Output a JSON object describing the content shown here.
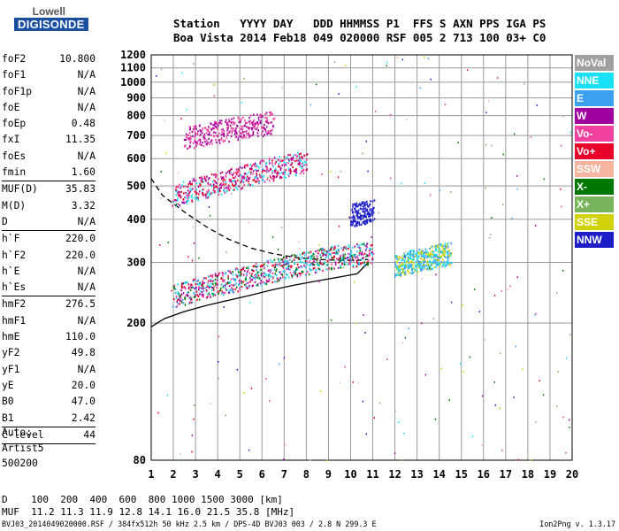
{
  "logo": {
    "line1": "Lowell",
    "line2": "DIGISONDE"
  },
  "header": {
    "line1": "Station   YYYY DAY   DDD HHMMSS P1  FFS S AXN PPS IGA PS",
    "line2": "Boa Vista 2014 Feb18 049 020000 RSF 005 2 713 100 03+ C0"
  },
  "params": [
    {
      "k": "foF2",
      "v": "10.800"
    },
    {
      "k": "foF1",
      "v": "N/A"
    },
    {
      "k": "foF1p",
      "v": "N/A"
    },
    {
      "k": "foE",
      "v": "N/A"
    },
    {
      "k": "foEp",
      "v": "0.48"
    },
    {
      "k": "fxI",
      "v": "11.35"
    },
    {
      "k": "foEs",
      "v": "N/A"
    },
    {
      "k": "fmin",
      "v": "1.60",
      "sep": true
    },
    {
      "k": "MUF(D)",
      "v": "35.83"
    },
    {
      "k": "M(D)",
      "v": "3.32"
    },
    {
      "k": "D",
      "v": "N/A",
      "sep": true
    },
    {
      "k": "h`F",
      "v": "220.0"
    },
    {
      "k": "h`F2",
      "v": "220.0"
    },
    {
      "k": "h`E",
      "v": "N/A"
    },
    {
      "k": "h`Es",
      "v": "N/A",
      "sep": true
    },
    {
      "k": "hmF2",
      "v": "276.5"
    },
    {
      "k": "hmF1",
      "v": "N/A"
    },
    {
      "k": "hmE",
      "v": "110.0"
    },
    {
      "k": "yF2",
      "v": "49.8"
    },
    {
      "k": "yF1",
      "v": "N/A"
    },
    {
      "k": "yE",
      "v": "20.0"
    },
    {
      "k": "B0",
      "v": "47.0"
    },
    {
      "k": "B1",
      "v": "2.42",
      "sep": true
    },
    {
      "k": "C-level",
      "v": "44",
      "sep": true
    }
  ],
  "auto": "Auto:\nArtist5\n500200",
  "muf_table": {
    "line1": "D    100  200  400  600  800 1000 1500 3000 [km]",
    "line2": "MUF  11.2 11.3 11.9 12.8 14.1 16.0 21.5 35.8 [MHz]"
  },
  "footer": "BVJ03_2014049020000.RSF / 384fx512h 50 kHz 2.5 km / DPS-4D BVJ03 003 / 2.8 N 299.3 E",
  "version": "Ion2Png v. 1.3.17",
  "chart_data": {
    "type": "scatter",
    "title": "",
    "xlabel": "",
    "ylabel": "",
    "xlim": [
      1,
      20
    ],
    "ylim": [
      80,
      1200
    ],
    "xticks": [
      1,
      2,
      3,
      4,
      5,
      6,
      7,
      8,
      9,
      10,
      11,
      12,
      13,
      14,
      15,
      16,
      17,
      18,
      19,
      20
    ],
    "yticks": [
      80,
      200,
      300,
      400,
      500,
      600,
      700,
      800,
      900,
      1000,
      1100,
      1200
    ],
    "y_scale": "log",
    "grid": true,
    "legend_position": "right",
    "legend": [
      {
        "label": "NoVal",
        "color": "#a0a0a0"
      },
      {
        "label": "NNE",
        "color": "#19e0f5"
      },
      {
        "label": "E",
        "color": "#3ca0f0"
      },
      {
        "label": "W",
        "color": "#a000a0"
      },
      {
        "label": "Vo-",
        "color": "#f040a0"
      },
      {
        "label": "Vo+",
        "color": "#e8002a"
      },
      {
        "label": "SSW",
        "color": "#f5b4a0"
      },
      {
        "label": "X-",
        "color": "#007800"
      },
      {
        "label": "X+",
        "color": "#78b45a"
      },
      {
        "label": "SSE",
        "color": "#d2d20a"
      },
      {
        "label": "NNW",
        "color": "#1e1ec8"
      }
    ],
    "series": [
      {
        "kind": "solid-profile",
        "color": "#000000",
        "x": [
          1,
          1.6,
          2.5,
          3.5,
          4.5,
          5.5,
          6.5,
          7.5,
          8.5,
          9.5,
          10.3,
          10.8
        ],
        "y": [
          195,
          206,
          216,
          225,
          233,
          241,
          250,
          258,
          265,
          272,
          278,
          300
        ]
      },
      {
        "kind": "dashed-profile",
        "color": "#000000",
        "x": [
          1,
          1.5,
          2.5,
          3.5,
          4.5,
          5.5,
          6.5,
          7.5,
          8.5,
          9.5,
          10.3,
          10.8
        ],
        "y": [
          525,
          470,
          420,
          380,
          350,
          330,
          318,
          310,
          306,
          304,
          304,
          306
        ]
      },
      {
        "kind": "echo-band",
        "colors": [
          "#a000a0",
          "#f040a0",
          "#e8002a",
          "#19e0f5"
        ],
        "x": [
          2,
          3,
          4,
          5,
          6,
          7,
          8
        ],
        "y": [
          470,
          490,
          510,
          530,
          555,
          570,
          590
        ]
      },
      {
        "kind": "echo-band",
        "colors": [
          "#a000a0",
          "#f040a0"
        ],
        "x": [
          2.5,
          3.5,
          4.5,
          5.5,
          6.5
        ],
        "y": [
          690,
          710,
          730,
          750,
          765
        ]
      },
      {
        "kind": "echo-band",
        "colors": [
          "#a000a0",
          "#f040a0",
          "#3ca0f0",
          "#19e0f5",
          "#007800",
          "#e8002a"
        ],
        "x": [
          2,
          3,
          4,
          5,
          6,
          7,
          8,
          9,
          10,
          11
        ],
        "y": [
          240,
          250,
          260,
          270,
          280,
          290,
          300,
          310,
          315,
          320
        ]
      },
      {
        "kind": "echo-band",
        "colors": [
          "#19e0f5",
          "#d2d20a",
          "#3ca0f0"
        ],
        "x": [
          12,
          12.5,
          13,
          13.5,
          14,
          14.5
        ],
        "y": [
          295,
          300,
          305,
          310,
          315,
          318
        ]
      },
      {
        "kind": "echo-band",
        "colors": [
          "#1e1ec8"
        ],
        "x": [
          10,
          10.5,
          11
        ],
        "y": [
          410,
          420,
          425
        ]
      }
    ]
  }
}
